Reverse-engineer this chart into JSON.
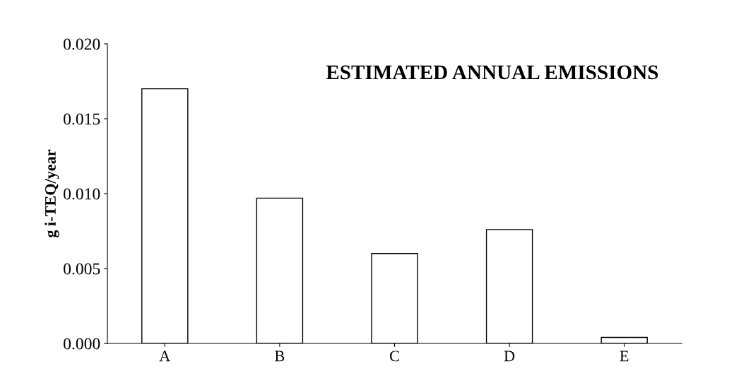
{
  "chart_data": {
    "type": "bar",
    "title": "ESTIMATED ANNUAL EMISSIONS",
    "ylabel": "g i-TEQ/year",
    "categories": [
      "A",
      "B",
      "C",
      "D",
      "E"
    ],
    "values": [
      0.017,
      0.0097,
      0.006,
      0.0076,
      0.0004
    ],
    "color": "#ffffff",
    "ylim": [
      0,
      0.02
    ],
    "yticks": [
      {
        "value": 0,
        "label": "0.000"
      },
      {
        "value": 0.005,
        "label": "0.005"
      },
      {
        "value": 0.01,
        "label": "0.010"
      },
      {
        "value": 0.015,
        "label": "0.015"
      },
      {
        "value": 0.02,
        "label": "0.020"
      }
    ],
    "grid": false
  }
}
